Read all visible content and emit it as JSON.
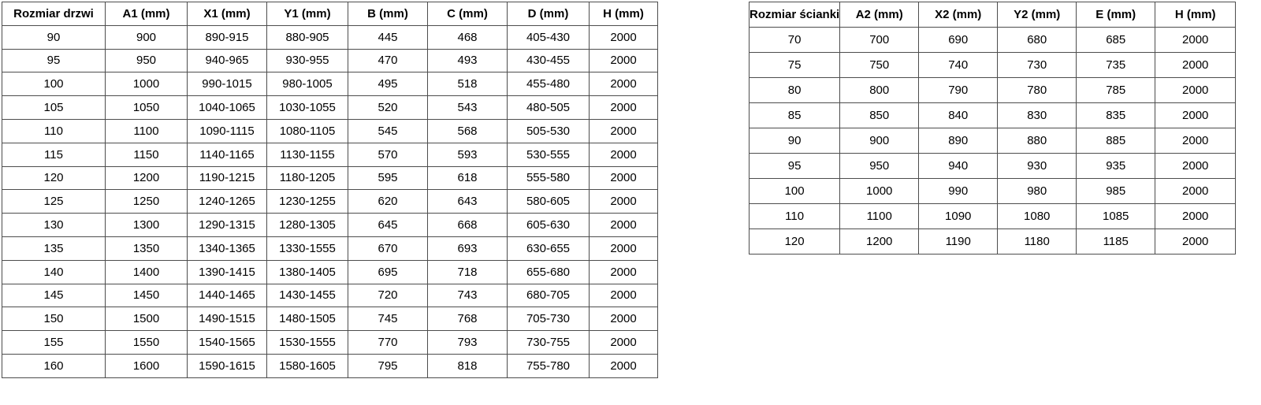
{
  "page": {
    "background_color": "#ffffff",
    "border_color": "#4d4d4d",
    "text_color": "#000000"
  },
  "door_table": {
    "title": "Rozmiar drzwi",
    "headers": [
      "Rozmiar drzwi",
      "A1 (mm)",
      "X1 (mm)",
      "Y1 (mm)",
      "B (mm)",
      "C (mm)",
      "D (mm)",
      "H (mm)"
    ],
    "rows": [
      [
        "90",
        "900",
        "890-915",
        "880-905",
        "445",
        "468",
        "405-430",
        "2000"
      ],
      [
        "95",
        "950",
        "940-965",
        "930-955",
        "470",
        "493",
        "430-455",
        "2000"
      ],
      [
        "100",
        "1000",
        "990-1015",
        "980-1005",
        "495",
        "518",
        "455-480",
        "2000"
      ],
      [
        "105",
        "1050",
        "1040-1065",
        "1030-1055",
        "520",
        "543",
        "480-505",
        "2000"
      ],
      [
        "110",
        "1100",
        "1090-1115",
        "1080-1105",
        "545",
        "568",
        "505-530",
        "2000"
      ],
      [
        "115",
        "1150",
        "1140-1165",
        "1130-1155",
        "570",
        "593",
        "530-555",
        "2000"
      ],
      [
        "120",
        "1200",
        "1190-1215",
        "1180-1205",
        "595",
        "618",
        "555-580",
        "2000"
      ],
      [
        "125",
        "1250",
        "1240-1265",
        "1230-1255",
        "620",
        "643",
        "580-605",
        "2000"
      ],
      [
        "130",
        "1300",
        "1290-1315",
        "1280-1305",
        "645",
        "668",
        "605-630",
        "2000"
      ],
      [
        "135",
        "1350",
        "1340-1365",
        "1330-1555",
        "670",
        "693",
        "630-655",
        "2000"
      ],
      [
        "140",
        "1400",
        "1390-1415",
        "1380-1405",
        "695",
        "718",
        "655-680",
        "2000"
      ],
      [
        "145",
        "1450",
        "1440-1465",
        "1430-1455",
        "720",
        "743",
        "680-705",
        "2000"
      ],
      [
        "150",
        "1500",
        "1490-1515",
        "1480-1505",
        "745",
        "768",
        "705-730",
        "2000"
      ],
      [
        "155",
        "1550",
        "1540-1565",
        "1530-1555",
        "770",
        "793",
        "730-755",
        "2000"
      ],
      [
        "160",
        "1600",
        "1590-1615",
        "1580-1605",
        "795",
        "818",
        "755-780",
        "2000"
      ]
    ]
  },
  "wall_table": {
    "title": "Rozmiar ścianki",
    "headers": [
      "Rozmiar ścianki",
      "A2 (mm)",
      "X2 (mm)",
      "Y2 (mm)",
      "E (mm)",
      "H (mm)"
    ],
    "rows": [
      [
        "70",
        "700",
        "690",
        "680",
        "685",
        "2000"
      ],
      [
        "75",
        "750",
        "740",
        "730",
        "735",
        "2000"
      ],
      [
        "80",
        "800",
        "790",
        "780",
        "785",
        "2000"
      ],
      [
        "85",
        "850",
        "840",
        "830",
        "835",
        "2000"
      ],
      [
        "90",
        "900",
        "890",
        "880",
        "885",
        "2000"
      ],
      [
        "95",
        "950",
        "940",
        "930",
        "935",
        "2000"
      ],
      [
        "100",
        "1000",
        "990",
        "980",
        "985",
        "2000"
      ],
      [
        "110",
        "1100",
        "1090",
        "1080",
        "1085",
        "2000"
      ],
      [
        "120",
        "1200",
        "1190",
        "1180",
        "1185",
        "2000"
      ]
    ]
  }
}
